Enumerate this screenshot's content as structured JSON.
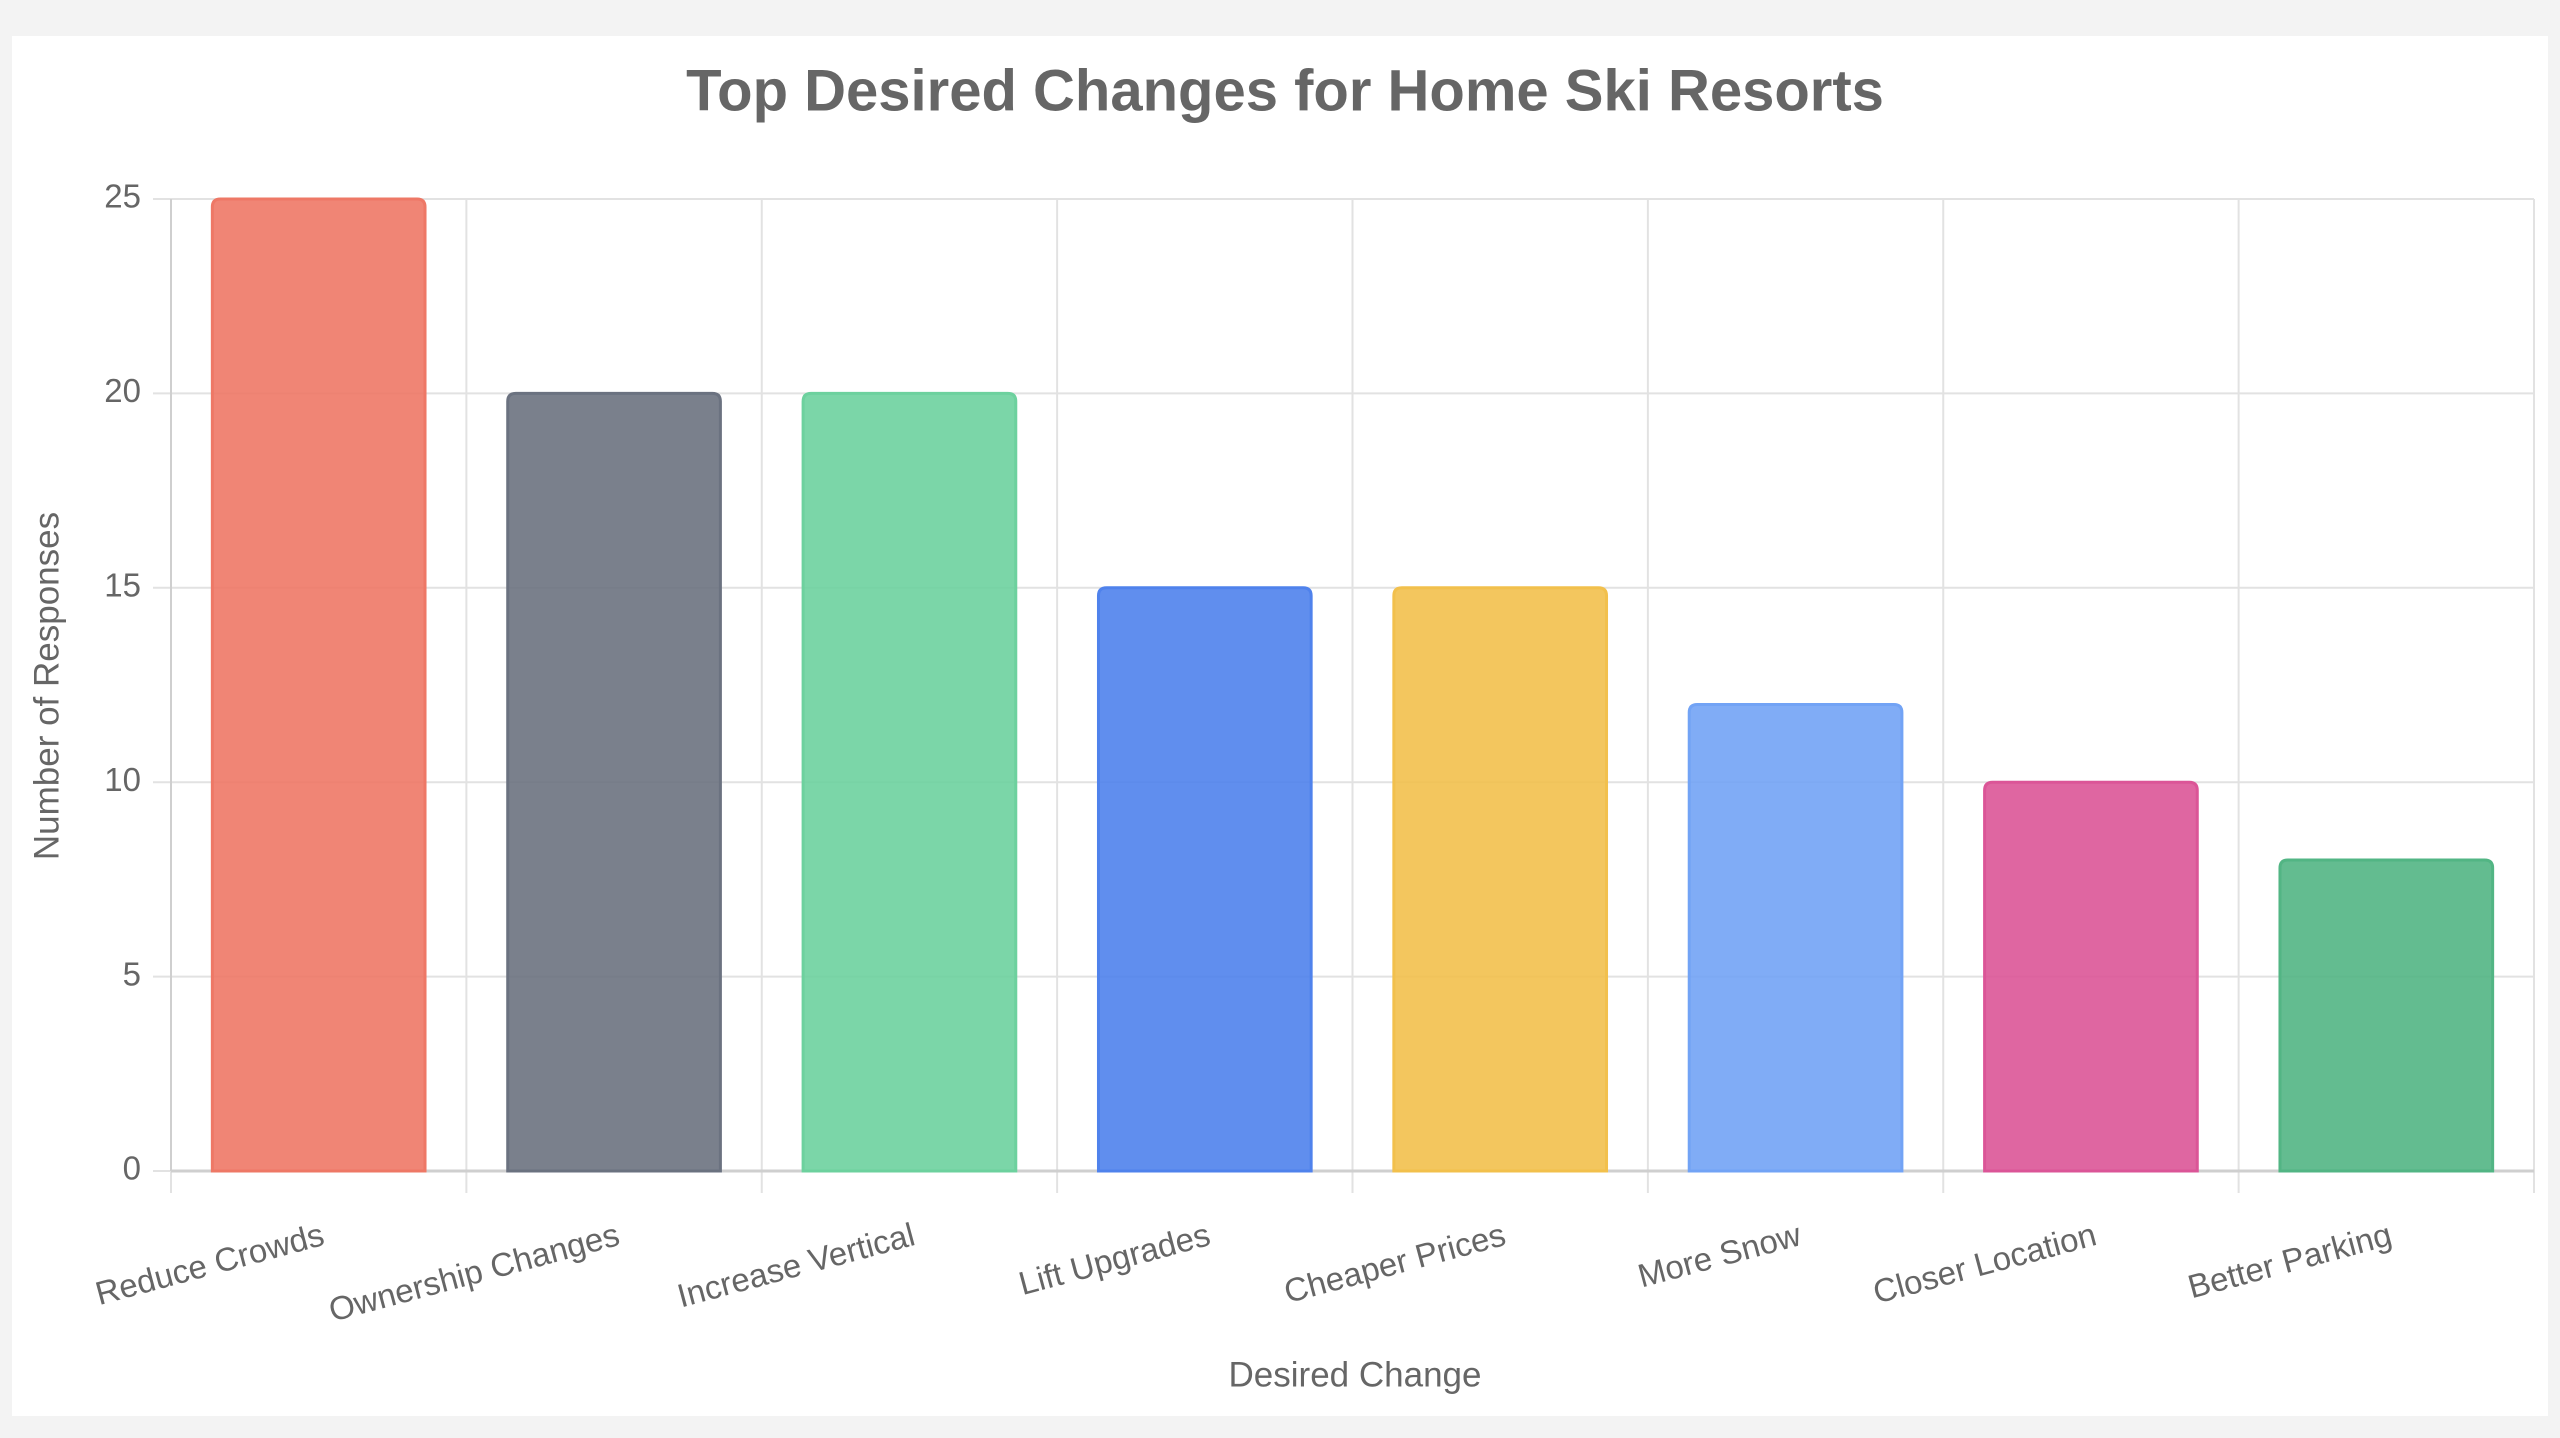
{
  "chart_data": {
    "type": "bar",
    "title": "Top Desired Changes for Home Ski Resorts",
    "x_label": "Desired Change",
    "y_label": "Number of Responses",
    "categories": [
      "Reduce Crowds",
      "Ownership Changes",
      "Increase Vertical",
      "Lift Upgrades",
      "Cheaper Prices",
      "More Snow",
      "Closer Location",
      "Better Parking"
    ],
    "values": [
      25,
      20,
      20,
      15,
      15,
      12,
      10,
      8
    ],
    "colors": [
      "#ee7866",
      "#6b7280",
      "#6dd19e",
      "#4f82ec",
      "#f2c04c",
      "#72a3f5",
      "#db5597",
      "#52b584"
    ],
    "ylim": [
      0,
      25
    ],
    "yticks": [
      0,
      5,
      10,
      15,
      20,
      25
    ],
    "grid": true
  }
}
